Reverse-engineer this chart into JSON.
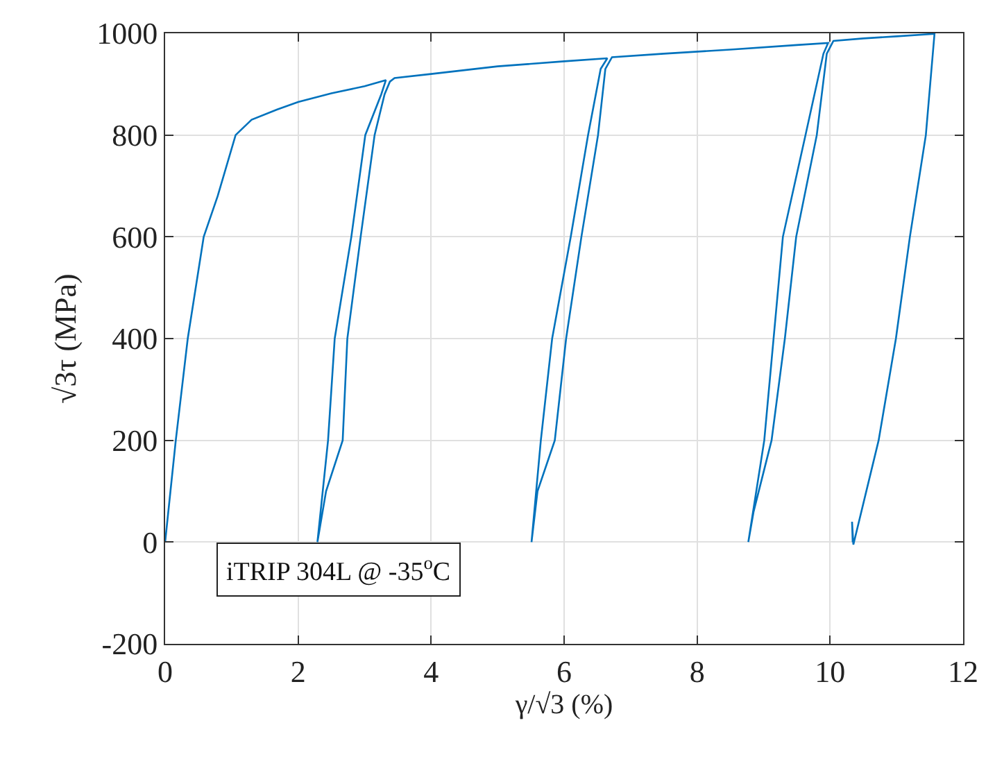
{
  "chart_data": {
    "type": "line",
    "xlabel": "γ/√3 (%)",
    "ylabel": "√3τ (MPa)",
    "series": [
      {
        "color": "#0072bd",
        "x": [
          0,
          0.08,
          0.16,
          0.34,
          0.58,
          0.79,
          1.06,
          1.3,
          1.68,
          2.0,
          2.5,
          3.0,
          3.32,
          3.25,
          3.01,
          2.8,
          2.55,
          2.45,
          2.29,
          2.42,
          2.67,
          2.74,
          2.94,
          3.15,
          3.3,
          3.38,
          3.45,
          4.0,
          5.0,
          6.0,
          6.65,
          6.55,
          6.36,
          6.1,
          5.82,
          5.65,
          5.51,
          5.6,
          5.86,
          6.03,
          6.26,
          6.51,
          6.62,
          6.72,
          7.5,
          8.5,
          9.5,
          9.97,
          9.9,
          9.63,
          9.29,
          9.15,
          9.01,
          8.77,
          8.85,
          9.12,
          9.32,
          9.49,
          9.8,
          9.95,
          10.05,
          10.5,
          11.0,
          11.57,
          11.44,
          11.2,
          10.99,
          10.73,
          10.35,
          10.33,
          10.34
        ],
        "values": [
          0,
          100,
          200,
          400,
          600,
          680,
          800,
          830,
          850,
          865,
          882,
          896,
          908,
          880,
          800,
          600,
          400,
          200,
          0,
          100,
          200,
          400,
          600,
          800,
          880,
          905,
          912,
          920,
          935,
          945,
          951,
          930,
          800,
          600,
          400,
          200,
          0,
          100,
          200,
          400,
          600,
          800,
          930,
          953,
          960,
          968,
          977,
          981,
          960,
          800,
          600,
          400,
          200,
          0,
          60,
          200,
          400,
          600,
          800,
          960,
          985,
          990,
          994,
          999,
          800,
          600,
          400,
          200,
          -5,
          40,
          0
        ]
      }
    ],
    "xlim": [
      0,
      12
    ],
    "xticks": [
      0,
      2,
      4,
      6,
      8,
      10,
      12
    ],
    "ylim": [
      -200,
      1000
    ],
    "yticks": [
      -200,
      0,
      200,
      400,
      600,
      800,
      1000
    ],
    "grid": true,
    "legend": false,
    "marker": "none",
    "line_style": "solid",
    "annotations": [
      "iTRIP 304L @ -35$^{o}$C"
    ]
  }
}
